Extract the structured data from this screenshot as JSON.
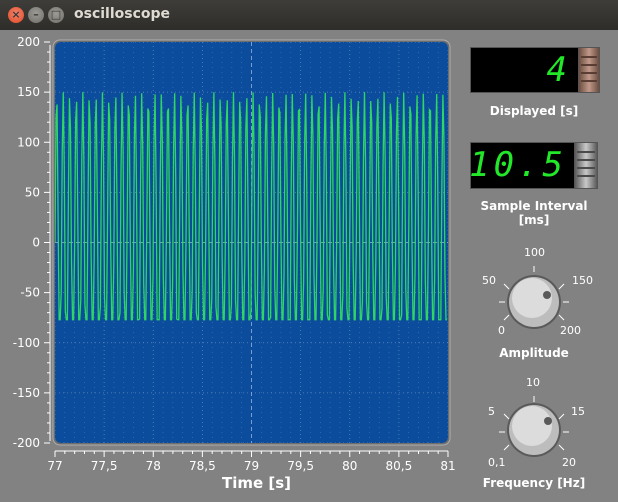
{
  "window": {
    "title": "oscilloscope"
  },
  "titlebar_icons": {
    "close": "close-icon",
    "minimize": "minimize-icon",
    "maximize": "maximize-icon"
  },
  "displayed": {
    "value": "4",
    "label": "Displayed [s]"
  },
  "sample_interval": {
    "value": "10.5",
    "label": "Sample Interval [ms]"
  },
  "amplitude_knob": {
    "label": "Amplitude",
    "scale": [
      "0",
      "50",
      "100",
      "150",
      "200"
    ],
    "value": 150
  },
  "frequency_knob": {
    "label": "Frequency [Hz]",
    "scale": [
      "0,1",
      "5",
      "10",
      "15",
      "20"
    ],
    "value": 15
  },
  "plot": {
    "y_ticks": [
      "200",
      "150",
      "100",
      "50",
      "0",
      "-50",
      "-100",
      "-150",
      "-200"
    ],
    "x_ticks": [
      "77",
      "77,5",
      "78",
      "78,5",
      "79",
      "79,5",
      "80",
      "80,5",
      "81"
    ],
    "xlabel": "Time [s]",
    "colors": {
      "background": "#0b4d9c",
      "grid": "#9fb8d8",
      "signal": "#2fd663"
    }
  },
  "chart_data": {
    "type": "line",
    "xlabel": "Time [s]",
    "xlim": [
      77,
      81
    ],
    "ylim": [
      -200,
      200
    ],
    "grid": true,
    "series": [
      {
        "signal": "sine",
        "amplitude": 150,
        "frequency_hz": 15,
        "clipped_min": -77
      }
    ]
  }
}
